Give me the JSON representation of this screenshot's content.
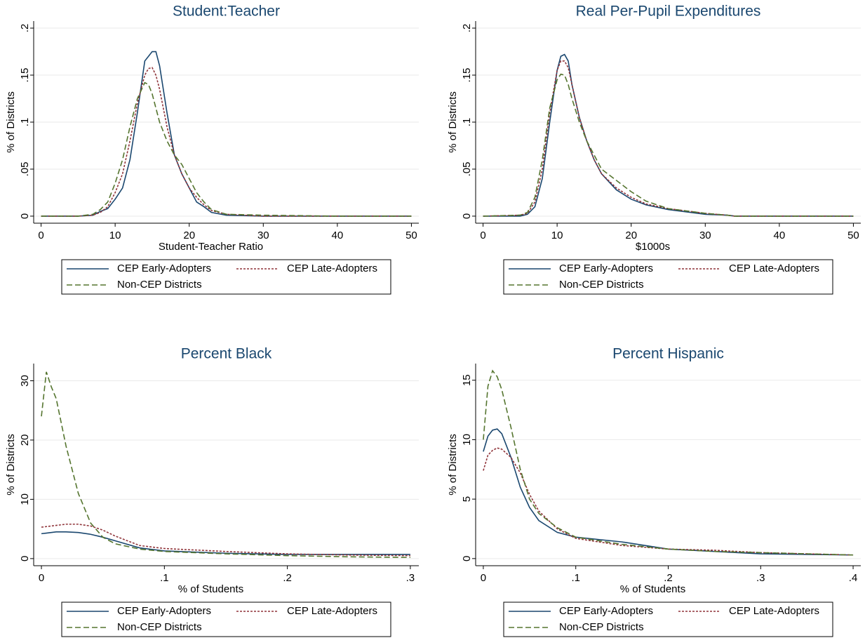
{
  "chart_data": [
    {
      "type": "line",
      "title": "Student:Teacher",
      "xlabel": "Student-Teacher Ratio",
      "ylabel": "% of Districts",
      "x": [
        0,
        5,
        7,
        8,
        9,
        10,
        11,
        12,
        13,
        14,
        14.5,
        15,
        15.5,
        16,
        17,
        18,
        19,
        20,
        21,
        22,
        23,
        25,
        30,
        40,
        50
      ],
      "series": [
        {
          "name": "CEP Early-Adopters",
          "color": "#1a476f",
          "dash": "none",
          "values": [
            0,
            0,
            0.001,
            0.005,
            0.008,
            0.018,
            0.03,
            0.06,
            0.11,
            0.165,
            0.17,
            0.175,
            0.175,
            0.16,
            0.11,
            0.065,
            0.045,
            0.03,
            0.015,
            0.01,
            0.004,
            0.001,
            0,
            0,
            0
          ]
        },
        {
          "name": "CEP Late-Adopters",
          "color": "#90353b",
          "dash": "3,2",
          "values": [
            0,
            0,
            0.001,
            0.004,
            0.01,
            0.025,
            0.045,
            0.08,
            0.12,
            0.15,
            0.157,
            0.158,
            0.15,
            0.135,
            0.095,
            0.065,
            0.045,
            0.03,
            0.02,
            0.012,
            0.006,
            0.002,
            0,
            0,
            0
          ]
        },
        {
          "name": "Non-CEP Districts",
          "color": "#55752f",
          "dash": "8,4",
          "values": [
            0,
            0,
            0.002,
            0.007,
            0.015,
            0.035,
            0.06,
            0.095,
            0.125,
            0.142,
            0.14,
            0.13,
            0.115,
            0.1,
            0.08,
            0.065,
            0.055,
            0.04,
            0.025,
            0.015,
            0.007,
            0.002,
            0.001,
            0,
            0
          ]
        }
      ],
      "xlim": [
        -1,
        51
      ],
      "ylim": [
        -0.0075,
        0.2075
      ],
      "xticks": [
        0,
        10,
        20,
        30,
        40,
        50
      ],
      "yticks": [
        0,
        {
          "value": 0.05,
          "label": ".05"
        },
        {
          "value": 0.1,
          "label": ".1"
        },
        {
          "value": 0.15,
          "label": ".15"
        },
        {
          "value": 0.2,
          "label": ".2"
        }
      ],
      "grid": true
    },
    {
      "type": "line",
      "title": "Real Per-Pupil Expenditures",
      "xlabel": "$1000s",
      "ylabel": "% of Districts",
      "x": [
        0,
        5,
        6,
        7,
        8,
        9,
        10,
        10.5,
        11,
        11.5,
        12,
        13,
        14,
        15,
        16,
        18,
        20,
        22,
        25,
        30,
        33,
        34,
        40,
        50
      ],
      "series": [
        {
          "name": "CEP Early-Adopters",
          "color": "#1a476f",
          "dash": "none",
          "values": [
            0,
            0,
            0.002,
            0.01,
            0.04,
            0.1,
            0.155,
            0.17,
            0.172,
            0.165,
            0.14,
            0.105,
            0.08,
            0.06,
            0.045,
            0.028,
            0.018,
            0.012,
            0.007,
            0.002,
            0.001,
            0,
            0,
            0
          ]
        },
        {
          "name": "CEP Late-Adopters",
          "color": "#90353b",
          "dash": "3,2",
          "values": [
            0,
            0.001,
            0.003,
            0.015,
            0.05,
            0.11,
            0.155,
            0.165,
            0.165,
            0.158,
            0.14,
            0.105,
            0.08,
            0.06,
            0.045,
            0.03,
            0.02,
            0.013,
            0.008,
            0.003,
            0.001,
            0,
            0,
            0
          ]
        },
        {
          "name": "Non-CEP Districts",
          "color": "#55752f",
          "dash": "8,4",
          "values": [
            0,
            0.001,
            0.004,
            0.02,
            0.06,
            0.115,
            0.145,
            0.151,
            0.15,
            0.14,
            0.125,
            0.1,
            0.08,
            0.065,
            0.05,
            0.038,
            0.026,
            0.016,
            0.008,
            0.003,
            0.001,
            0,
            0,
            0
          ]
        }
      ],
      "xlim": [
        -1,
        51
      ],
      "ylim": [
        -0.0075,
        0.2075
      ],
      "xticks": [
        0,
        10,
        20,
        30,
        40,
        50
      ],
      "yticks": [
        0,
        {
          "value": 0.05,
          "label": ".05"
        },
        {
          "value": 0.1,
          "label": ".1"
        },
        {
          "value": 0.15,
          "label": ".15"
        },
        {
          "value": 0.2,
          "label": ".2"
        }
      ],
      "grid": true
    },
    {
      "type": "line",
      "title": "Percent Black",
      "xlabel": "% of Students",
      "ylabel": "% of Districts",
      "x": [
        0,
        0.004,
        0.008,
        0.012,
        0.02,
        0.03,
        0.04,
        0.05,
        0.06,
        0.08,
        0.1,
        0.15,
        0.2,
        0.25,
        0.3
      ],
      "series": [
        {
          "name": "CEP Early-Adopters",
          "color": "#1a476f",
          "dash": "none",
          "values": [
            4.2,
            4.3,
            4.4,
            4.5,
            4.5,
            4.4,
            4.1,
            3.6,
            3,
            1.8,
            1.3,
            0.9,
            0.7,
            0.7,
            0.7
          ]
        },
        {
          "name": "CEP Late-Adopters",
          "color": "#90353b",
          "dash": "3,2",
          "values": [
            5.3,
            5.4,
            5.5,
            5.6,
            5.8,
            5.8,
            5.5,
            4.8,
            3.8,
            2.2,
            1.7,
            1.2,
            0.8,
            0.6,
            0.5
          ]
        },
        {
          "name": "Non-CEP Districts",
          "color": "#55752f",
          "dash": "8,4",
          "values": [
            24,
            31.5,
            29,
            27,
            19,
            11,
            6,
            3.6,
            2.5,
            1.6,
            1.2,
            0.8,
            0.5,
            0.3,
            0.2
          ]
        }
      ],
      "xlim": [
        -0.0063,
        0.3069
      ],
      "ylim": [
        -1.2,
        32.9
      ],
      "xticks": [
        0,
        {
          "value": 0.1,
          "label": ".1"
        },
        {
          "value": 0.2,
          "label": ".2"
        },
        {
          "value": 0.3,
          "label": ".3"
        }
      ],
      "yticks": [
        0,
        10,
        20,
        30
      ],
      "grid": true
    },
    {
      "type": "line",
      "title": "Percent Hispanic",
      "xlabel": "% of Students",
      "ylabel": "% of Districts",
      "x": [
        0,
        0.005,
        0.01,
        0.015,
        0.02,
        0.03,
        0.04,
        0.05,
        0.06,
        0.08,
        0.1,
        0.15,
        0.2,
        0.25,
        0.3,
        0.35,
        0.4
      ],
      "series": [
        {
          "name": "CEP Early-Adopters",
          "color": "#1a476f",
          "dash": "none",
          "values": [
            9,
            10.3,
            10.8,
            10.9,
            10.5,
            8.5,
            6,
            4.3,
            3.2,
            2.2,
            1.8,
            1.4,
            0.8,
            0.6,
            0.4,
            0.35,
            0.3
          ]
        },
        {
          "name": "CEP Late-Adopters",
          "color": "#90353b",
          "dash": "3,2",
          "values": [
            7.4,
            8.7,
            9.1,
            9.3,
            9.2,
            8.5,
            7.2,
            5.4,
            4,
            2.5,
            1.7,
            1.1,
            0.8,
            0.7,
            0.5,
            0.4,
            0.3
          ]
        },
        {
          "name": "Non-CEP Districts",
          "color": "#55752f",
          "dash": "8,4",
          "values": [
            10,
            14.5,
            15.8,
            15.3,
            14.2,
            11,
            7.5,
            5,
            3.8,
            2.6,
            1.8,
            1.2,
            0.8,
            0.6,
            0.5,
            0.4,
            0.3
          ]
        }
      ],
      "xlim": [
        -0.0083,
        0.4083
      ],
      "ylim": [
        -0.6,
        16.4
      ],
      "xticks": [
        0,
        {
          "value": 0.1,
          "label": ".1"
        },
        {
          "value": 0.2,
          "label": ".2"
        },
        {
          "value": 0.3,
          "label": ".3"
        },
        {
          "value": 0.4,
          "label": ".4"
        }
      ],
      "yticks": [
        0,
        5,
        10,
        15
      ],
      "grid": true
    }
  ]
}
